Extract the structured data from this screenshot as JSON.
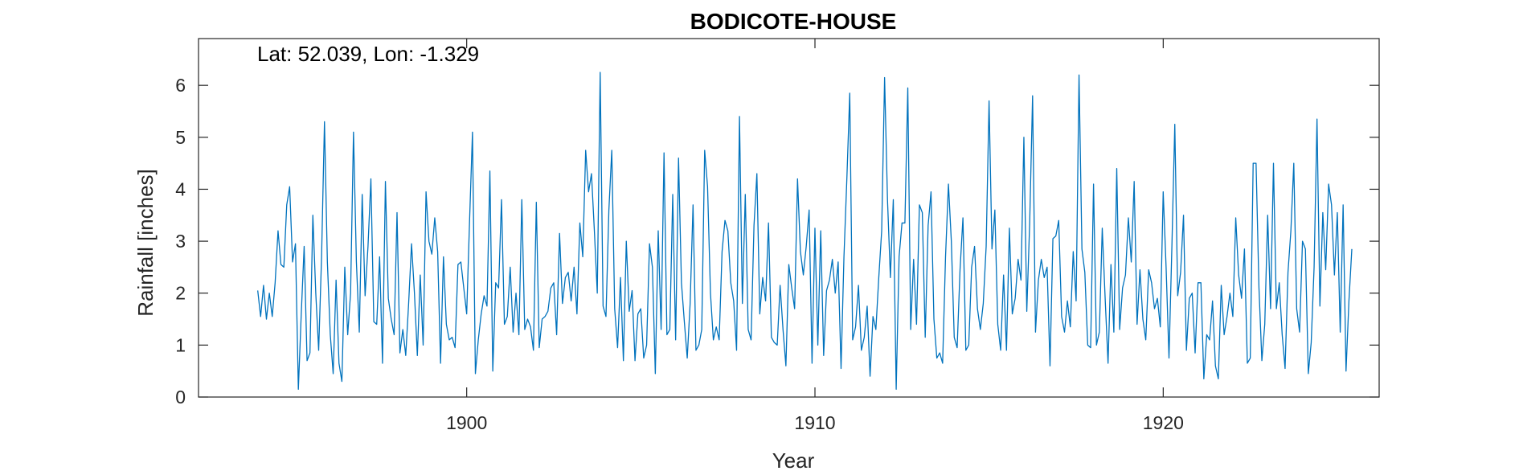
{
  "chart_data": {
    "type": "line",
    "title": "BODICOTE-HOUSE",
    "annotation": "Lat: 52.039, Lon: -1.329",
    "xlabel": "Year",
    "ylabel": "Rainfall [inches]",
    "xlim": [
      1892.3,
      1926.2
    ],
    "ylim": [
      0,
      6.9
    ],
    "xticks": [
      1900,
      1910,
      1920
    ],
    "yticks": [
      0,
      1,
      2,
      3,
      4,
      5,
      6
    ],
    "grid": false,
    "line_color": "#0072BD",
    "series": [
      {
        "x_start": 1894.0,
        "x_step": 0.08333,
        "values": [
          2.05,
          1.55,
          2.15,
          1.5,
          2.0,
          1.55,
          2.2,
          3.2,
          2.55,
          2.5,
          3.7,
          4.05,
          2.6,
          2.95,
          0.15,
          1.6,
          2.9,
          0.7,
          0.85,
          3.5,
          2.0,
          0.9,
          2.7,
          5.3,
          2.6,
          1.2,
          0.45,
          2.25,
          0.65,
          0.3,
          2.5,
          1.2,
          2.0,
          5.1,
          2.6,
          1.25,
          3.9,
          1.95,
          2.9,
          4.2,
          1.45,
          1.4,
          2.7,
          0.65,
          4.15,
          1.9,
          1.5,
          1.2,
          3.55,
          0.85,
          1.3,
          0.8,
          1.8,
          2.95,
          2.0,
          0.8,
          2.35,
          1.0,
          3.95,
          3.0,
          2.75,
          3.45,
          2.8,
          0.65,
          2.7,
          1.4,
          1.1,
          1.15,
          0.95,
          2.55,
          2.6,
          2.1,
          1.6,
          3.4,
          5.1,
          0.45,
          1.1,
          1.6,
          1.95,
          1.75,
          4.35,
          0.5,
          2.2,
          2.1,
          3.8,
          1.4,
          1.55,
          2.5,
          1.25,
          2.0,
          1.2,
          3.8,
          1.3,
          1.5,
          1.35,
          0.9,
          3.75,
          0.95,
          1.5,
          1.55,
          1.65,
          2.1,
          2.2,
          1.2,
          3.15,
          1.8,
          2.3,
          2.4,
          1.85,
          2.5,
          1.6,
          3.35,
          2.7,
          4.75,
          3.95,
          4.3,
          3.2,
          2.0,
          6.25,
          1.75,
          1.55,
          3.6,
          4.75,
          1.7,
          0.95,
          2.3,
          0.7,
          3.0,
          1.65,
          2.05,
          0.7,
          1.6,
          1.7,
          0.75,
          1.0,
          2.95,
          2.5,
          0.45,
          3.2,
          1.3,
          4.7,
          1.2,
          1.3,
          3.9,
          1.1,
          4.6,
          2.2,
          1.45,
          0.75,
          1.8,
          3.7,
          0.9,
          1.0,
          1.3,
          4.75,
          4.05,
          2.0,
          1.1,
          1.35,
          1.1,
          2.8,
          3.4,
          3.2,
          2.2,
          1.85,
          0.9,
          5.4,
          1.8,
          3.9,
          1.3,
          1.1,
          3.3,
          4.3,
          1.6,
          2.3,
          1.85,
          3.35,
          1.15,
          1.05,
          1.0,
          2.15,
          1.3,
          0.6,
          2.55,
          2.1,
          1.7,
          4.2,
          2.8,
          2.35,
          2.9,
          3.6,
          0.65,
          3.25,
          1.0,
          3.2,
          0.8,
          2.05,
          2.25,
          2.65,
          2.0,
          2.6,
          0.55,
          2.7,
          4.2,
          5.85,
          1.1,
          1.35,
          2.15,
          0.9,
          1.15,
          1.75,
          0.4,
          1.55,
          1.3,
          2.3,
          3.2,
          6.15,
          3.8,
          2.3,
          3.8,
          0.15,
          2.7,
          3.35,
          3.35,
          5.95,
          1.3,
          2.65,
          1.4,
          3.7,
          3.55,
          1.15,
          3.3,
          3.95,
          1.5,
          0.75,
          0.85,
          0.65,
          2.7,
          4.1,
          3.0,
          1.15,
          0.95,
          2.45,
          3.45,
          0.9,
          1.0,
          2.5,
          2.9,
          1.7,
          1.3,
          1.8,
          2.9,
          5.7,
          2.85,
          3.6,
          1.4,
          0.9,
          2.35,
          0.9,
          3.25,
          1.6,
          1.9,
          2.65,
          2.25,
          5.0,
          1.65,
          3.35,
          5.8,
          1.25,
          2.25,
          2.65,
          2.3,
          2.5,
          0.6,
          3.05,
          3.1,
          3.4,
          1.55,
          1.25,
          1.85,
          1.35,
          2.8,
          1.85,
          6.2,
          2.85,
          2.4,
          1.0,
          0.95,
          4.1,
          1.0,
          1.25,
          3.25,
          1.9,
          0.65,
          2.55,
          1.25,
          4.4,
          1.3,
          2.1,
          2.35,
          3.45,
          2.6,
          4.15,
          1.4,
          2.45,
          1.5,
          1.1,
          2.45,
          2.2,
          1.7,
          1.9,
          1.35,
          3.95,
          2.5,
          0.75,
          2.9,
          5.25,
          1.95,
          2.4,
          3.5,
          0.9,
          1.9,
          2.0,
          0.85,
          2.2,
          2.2,
          0.35,
          1.2,
          1.1,
          1.85,
          0.6,
          0.35,
          2.15,
          1.2,
          1.55,
          2.0,
          1.55,
          3.45,
          2.35,
          1.9,
          2.85,
          0.65,
          0.75,
          4.5,
          4.5,
          2.1,
          0.7,
          1.4,
          3.5,
          1.7,
          4.5,
          1.7,
          2.2,
          1.2,
          0.55,
          2.4,
          3.2,
          4.5,
          1.7,
          1.25,
          3.0,
          2.85,
          0.45,
          1.05,
          2.5,
          5.35,
          1.75,
          3.55,
          2.45,
          4.1,
          3.7,
          2.35,
          3.55,
          1.25,
          3.7,
          0.5,
          1.85,
          2.85
        ]
      }
    ]
  }
}
